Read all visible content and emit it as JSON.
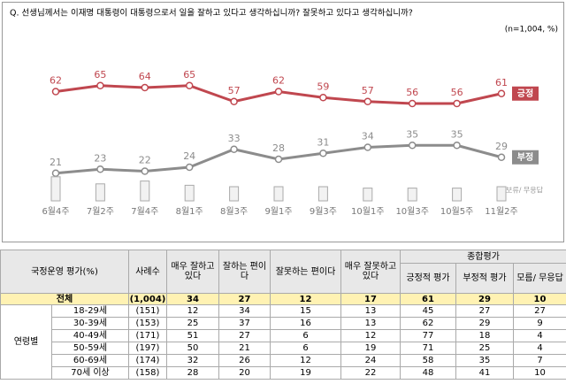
{
  "chart_data": {
    "type": "line",
    "question": "Q. 선생님께서는 이재명 대통령이 대통령으로서 일을 잘하고 있다고 생각하십니까? 잘못하고 있다고 생각하십니까?",
    "note": "(n=1,004, %)",
    "categories": [
      "6월4주",
      "7월2주",
      "7월4주",
      "8월1주",
      "8월3주",
      "9월1주",
      "9월3주",
      "10월1주",
      "10월3주",
      "10월5주",
      "11월2주"
    ],
    "ylim": [
      0,
      80
    ],
    "series": [
      {
        "name": "긍정",
        "color": "#c0474f",
        "values": [
          62,
          65,
          64,
          65,
          57,
          62,
          59,
          57,
          56,
          56,
          61
        ]
      },
      {
        "name": "부정",
        "color": "#8c8c8c",
        "values": [
          21,
          23,
          22,
          24,
          33,
          28,
          31,
          34,
          35,
          35,
          29
        ]
      },
      {
        "name": "보류/ 무응답",
        "color": "#d9d9d9",
        "type": "bar",
        "values": [
          17,
          12,
          14,
          11,
          10,
          10,
          10,
          9,
          9,
          9,
          10
        ]
      }
    ]
  },
  "table": {
    "header": [
      "국정운영 평가(%)",
      "사례수",
      "매우 잘하고 있다",
      "잘하는 편이다",
      "잘못하는 편이다",
      "매우 잘못하고 있다",
      "긍정적 평가",
      "부정적 평가",
      "모름/ 무응답"
    ],
    "group": "종합평가",
    "section": "연령별",
    "rows": [
      [
        "전체",
        "(1,004)",
        "34",
        "27",
        "12",
        "17",
        "61",
        "29",
        "10"
      ],
      [
        "18-29세",
        "(151)",
        "12",
        "34",
        "15",
        "13",
        "45",
        "27",
        "27"
      ],
      [
        "30-39세",
        "(153)",
        "25",
        "37",
        "16",
        "13",
        "62",
        "29",
        "9"
      ],
      [
        "40-49세",
        "(171)",
        "51",
        "27",
        "6",
        "12",
        "77",
        "18",
        "4"
      ],
      [
        "50-59세",
        "(197)",
        "50",
        "21",
        "6",
        "19",
        "71",
        "25",
        "4"
      ],
      [
        "60-69세",
        "(174)",
        "32",
        "26",
        "12",
        "24",
        "58",
        "35",
        "7"
      ],
      [
        "70세 이상",
        "(158)",
        "28",
        "20",
        "19",
        "22",
        "48",
        "41",
        "10"
      ]
    ]
  }
}
